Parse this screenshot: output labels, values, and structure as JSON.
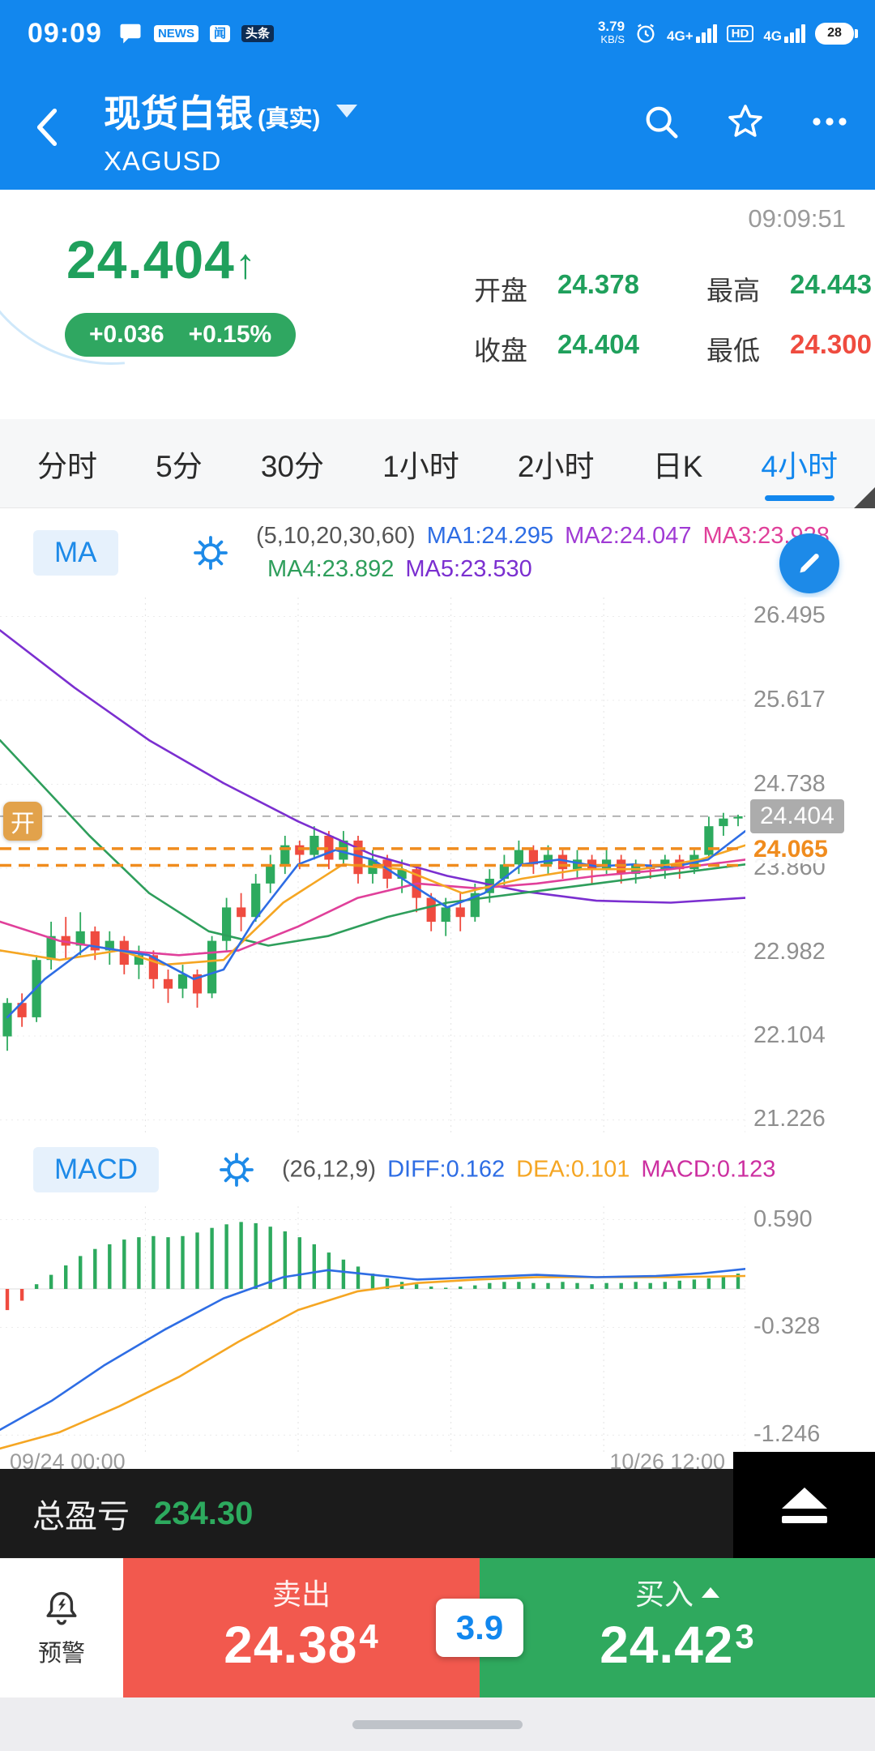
{
  "colors": {
    "accent_blue": "#1287ee",
    "up_green": "#2daa5e",
    "down_red": "#ef4b3f",
    "orange": "#f08c1e",
    "sell_red": "#f2594e",
    "buy_green": "#2fa95e"
  },
  "status_bar": {
    "time": "09:09",
    "badge_news": "NEWS",
    "badge_app1": "闻",
    "badge_app2": "头条",
    "speed_value": "3.79",
    "speed_unit": "KB/S",
    "net1": "4G+",
    "hd": "HD",
    "net2": "4G",
    "battery": "28"
  },
  "header": {
    "title": "现货白银",
    "title_suffix": "(真实)",
    "symbol": "XAGUSD"
  },
  "quote": {
    "timestamp": "09:09:51",
    "price": "24.404",
    "arrow": "↑",
    "change": "+0.036",
    "change_pct": "+0.15%",
    "fields": [
      {
        "label": "开盘",
        "value": "24.378",
        "dir": "up"
      },
      {
        "label": "最高",
        "value": "24.443",
        "dir": "up"
      },
      {
        "label": "收盘",
        "value": "24.404",
        "dir": "up"
      },
      {
        "label": "最低",
        "value": "24.300",
        "dir": "down"
      }
    ]
  },
  "tabs": {
    "items": [
      "分时",
      "5分",
      "30分",
      "1小时",
      "2小时",
      "日K",
      "4小时"
    ],
    "active_index": 6
  },
  "ma_panel": {
    "name": "MA",
    "params": "(5,10,20,30,60)",
    "items": [
      {
        "text": "MA1:24.295",
        "color": "#2e6de4"
      },
      {
        "text": "MA2:24.047",
        "color": "#a03ad4"
      },
      {
        "text": "MA3:23.928",
        "color": "#e0409a"
      },
      {
        "text": "MA4:23.892",
        "color": "#2e9e5b"
      },
      {
        "text": "MA5:23.530",
        "color": "#7b2fd0"
      }
    ],
    "line1_count": 3
  },
  "macd_panel": {
    "name": "MACD",
    "params": "(26,12,9)",
    "items": [
      {
        "text": "DIFF:0.162",
        "color": "#2e6de4"
      },
      {
        "text": "DEA:0.101",
        "color": "#f5a623"
      },
      {
        "text": "MACD:0.123",
        "color": "#cc2fa0"
      }
    ]
  },
  "x_axis": {
    "left": "09/24 00:00",
    "right": "10/26 12:00"
  },
  "pnl": {
    "label": "总盈亏",
    "value": "234.30"
  },
  "trade": {
    "alert": "预警",
    "sell_label": "卖出",
    "sell_main": "24.38",
    "sell_pip": "4",
    "spread": "3.9",
    "buy_label": "买入",
    "buy_main": "24.42",
    "buy_pip": "3"
  },
  "chart_data": [
    {
      "type": "candlestick",
      "title": "XAGUSD 4小时 K线 with MA(5,10,20,30,60)",
      "price_range": [
        21.086,
        26.694
      ],
      "y_ticks": [
        26.495,
        25.617,
        24.738,
        23.86,
        22.982,
        22.104,
        21.226
      ],
      "grid_x": [
        0.195,
        0.4,
        0.605,
        0.81,
        1.0
      ],
      "current_price": 24.404,
      "position_lines": [
        {
          "price": 24.065,
          "show_label": true
        },
        {
          "price": 23.89,
          "show_label": false
        }
      ],
      "open_marker": {
        "label": "开",
        "price": 24.35
      },
      "candles": [
        [
          22.1,
          22.45,
          21.95,
          22.5
        ],
        [
          22.45,
          22.3,
          22.2,
          22.55
        ],
        [
          22.3,
          22.9,
          22.25,
          22.95
        ],
        [
          22.9,
          23.15,
          22.8,
          23.3
        ],
        [
          23.15,
          23.05,
          22.9,
          23.35
        ],
        [
          23.05,
          23.2,
          22.95,
          23.4
        ],
        [
          23.2,
          23.0,
          22.9,
          23.25
        ],
        [
          23.0,
          23.1,
          22.85,
          23.2
        ],
        [
          23.1,
          22.85,
          22.75,
          23.15
        ],
        [
          22.85,
          22.95,
          22.7,
          23.05
        ],
        [
          22.95,
          22.7,
          22.6,
          23.0
        ],
        [
          22.7,
          22.6,
          22.45,
          22.8
        ],
        [
          22.6,
          22.75,
          22.5,
          22.85
        ],
        [
          22.75,
          22.55,
          22.4,
          22.8
        ],
        [
          22.55,
          23.1,
          22.5,
          23.15
        ],
        [
          23.1,
          23.45,
          23.0,
          23.55
        ],
        [
          23.45,
          23.35,
          23.2,
          23.6
        ],
        [
          23.35,
          23.7,
          23.3,
          23.8
        ],
        [
          23.7,
          23.9,
          23.6,
          24.0
        ],
        [
          23.9,
          24.1,
          23.8,
          24.2
        ],
        [
          24.1,
          24.0,
          23.85,
          24.15
        ],
        [
          24.0,
          24.2,
          23.95,
          24.3
        ],
        [
          24.2,
          23.95,
          23.85,
          24.25
        ],
        [
          23.95,
          24.15,
          23.9,
          24.25
        ],
        [
          24.15,
          23.8,
          23.7,
          24.2
        ],
        [
          23.8,
          23.95,
          23.7,
          24.05
        ],
        [
          23.95,
          23.75,
          23.65,
          24.0
        ],
        [
          23.75,
          23.85,
          23.6,
          23.95
        ],
        [
          23.85,
          23.55,
          23.4,
          23.9
        ],
        [
          23.55,
          23.3,
          23.2,
          23.6
        ],
        [
          23.3,
          23.45,
          23.15,
          23.55
        ],
        [
          23.45,
          23.35,
          23.2,
          23.6
        ],
        [
          23.35,
          23.6,
          23.3,
          23.7
        ],
        [
          23.6,
          23.75,
          23.5,
          23.85
        ],
        [
          23.75,
          23.9,
          23.65,
          24.0
        ],
        [
          23.9,
          24.05,
          23.8,
          24.15
        ],
        [
          24.05,
          23.9,
          23.8,
          24.1
        ],
        [
          23.9,
          24.0,
          23.8,
          24.1
        ],
        [
          24.0,
          23.85,
          23.75,
          24.05
        ],
        [
          23.85,
          23.95,
          23.75,
          24.05
        ],
        [
          23.95,
          23.85,
          23.7,
          24.0
        ],
        [
          23.85,
          23.95,
          23.8,
          24.05
        ],
        [
          23.95,
          23.8,
          23.7,
          24.0
        ],
        [
          23.8,
          23.9,
          23.7,
          23.95
        ],
        [
          23.9,
          23.85,
          23.75,
          23.95
        ],
        [
          23.85,
          23.95,
          23.75,
          24.0
        ],
        [
          23.95,
          23.85,
          23.75,
          24.0
        ],
        [
          23.85,
          24.0,
          23.8,
          24.05
        ],
        [
          24.0,
          24.3,
          23.95,
          24.4
        ],
        [
          24.3,
          24.38,
          24.2,
          24.44
        ],
        [
          24.38,
          24.404,
          24.3,
          24.42
        ]
      ],
      "ma_lines": [
        {
          "name": "MA60",
          "color": "#7b2fd0",
          "points": [
            [
              0,
              26.35
            ],
            [
              0.1,
              25.75
            ],
            [
              0.2,
              25.2
            ],
            [
              0.3,
              24.75
            ],
            [
              0.4,
              24.35
            ],
            [
              0.5,
              24.0
            ],
            [
              0.6,
              23.78
            ],
            [
              0.7,
              23.62
            ],
            [
              0.8,
              23.52
            ],
            [
              0.9,
              23.5
            ],
            [
              1.0,
              23.55
            ]
          ]
        },
        {
          "name": "MA30",
          "color": "#2e9e5b",
          "points": [
            [
              0,
              25.2
            ],
            [
              0.06,
              24.7
            ],
            [
              0.12,
              24.2
            ],
            [
              0.2,
              23.6
            ],
            [
              0.28,
              23.2
            ],
            [
              0.36,
              23.05
            ],
            [
              0.44,
              23.15
            ],
            [
              0.52,
              23.35
            ],
            [
              0.6,
              23.5
            ],
            [
              0.7,
              23.6
            ],
            [
              0.8,
              23.7
            ],
            [
              0.9,
              23.8
            ],
            [
              1.0,
              23.9
            ]
          ]
        },
        {
          "name": "MA20",
          "color": "#e0409a",
          "points": [
            [
              0,
              23.3
            ],
            [
              0.08,
              23.1
            ],
            [
              0.16,
              23.0
            ],
            [
              0.24,
              22.95
            ],
            [
              0.32,
              23.0
            ],
            [
              0.4,
              23.25
            ],
            [
              0.48,
              23.55
            ],
            [
              0.56,
              23.7
            ],
            [
              0.64,
              23.65
            ],
            [
              0.72,
              23.7
            ],
            [
              0.8,
              23.78
            ],
            [
              0.9,
              23.85
            ],
            [
              1.0,
              23.95
            ]
          ]
        },
        {
          "name": "MA10",
          "color": "#f5a623",
          "points": [
            [
              0,
              23.0
            ],
            [
              0.08,
              22.9
            ],
            [
              0.16,
              23.0
            ],
            [
              0.22,
              22.85
            ],
            [
              0.3,
              22.9
            ],
            [
              0.38,
              23.5
            ],
            [
              0.46,
              23.9
            ],
            [
              0.54,
              23.85
            ],
            [
              0.62,
              23.6
            ],
            [
              0.7,
              23.75
            ],
            [
              0.78,
              23.85
            ],
            [
              0.86,
              23.85
            ],
            [
              0.94,
              23.95
            ],
            [
              1.0,
              24.1
            ]
          ]
        },
        {
          "name": "MA5",
          "color": "#2e6de4",
          "points": [
            [
              0.01,
              22.3
            ],
            [
              0.06,
              22.7
            ],
            [
              0.12,
              23.05
            ],
            [
              0.2,
              22.95
            ],
            [
              0.26,
              22.7
            ],
            [
              0.3,
              22.8
            ],
            [
              0.34,
              23.3
            ],
            [
              0.4,
              23.9
            ],
            [
              0.45,
              24.05
            ],
            [
              0.5,
              23.95
            ],
            [
              0.55,
              23.7
            ],
            [
              0.6,
              23.45
            ],
            [
              0.65,
              23.6
            ],
            [
              0.7,
              23.9
            ],
            [
              0.75,
              23.95
            ],
            [
              0.8,
              23.88
            ],
            [
              0.85,
              23.9
            ],
            [
              0.9,
              23.87
            ],
            [
              0.95,
              23.95
            ],
            [
              1.0,
              24.25
            ]
          ]
        }
      ]
    },
    {
      "type": "macd",
      "value_range": [
        -1.388,
        0.704
      ],
      "y_ticks": [
        0.59,
        -0.328,
        -1.246
      ],
      "grid_x": [
        0.195,
        0.4,
        0.605,
        0.81,
        1.0
      ],
      "histogram": [
        -0.18,
        -0.1,
        0.04,
        0.12,
        0.2,
        0.28,
        0.34,
        0.38,
        0.42,
        0.44,
        0.45,
        0.44,
        0.45,
        0.48,
        0.52,
        0.55,
        0.57,
        0.56,
        0.53,
        0.49,
        0.44,
        0.38,
        0.31,
        0.25,
        0.19,
        0.13,
        0.09,
        0.06,
        0.04,
        0.02,
        0.01,
        0.02,
        0.03,
        0.05,
        0.06,
        0.06,
        0.05,
        0.05,
        0.06,
        0.05,
        0.04,
        0.05,
        0.05,
        0.06,
        0.05,
        0.06,
        0.07,
        0.08,
        0.09,
        0.11,
        0.13
      ],
      "diff_line": {
        "name": "DIFF",
        "color": "#2e6de4",
        "points": [
          [
            0,
            -1.2
          ],
          [
            0.07,
            -0.95
          ],
          [
            0.14,
            -0.65
          ],
          [
            0.22,
            -0.35
          ],
          [
            0.3,
            -0.08
          ],
          [
            0.38,
            0.1
          ],
          [
            0.44,
            0.16
          ],
          [
            0.5,
            0.12
          ],
          [
            0.56,
            0.08
          ],
          [
            0.64,
            0.1
          ],
          [
            0.72,
            0.12
          ],
          [
            0.8,
            0.1
          ],
          [
            0.88,
            0.11
          ],
          [
            0.94,
            0.13
          ],
          [
            1.0,
            0.17
          ]
        ]
      },
      "dea_line": {
        "name": "DEA",
        "color": "#f5a623",
        "points": [
          [
            0,
            -1.36
          ],
          [
            0.08,
            -1.22
          ],
          [
            0.16,
            -1.0
          ],
          [
            0.24,
            -0.75
          ],
          [
            0.32,
            -0.45
          ],
          [
            0.4,
            -0.18
          ],
          [
            0.48,
            -0.02
          ],
          [
            0.56,
            0.05
          ],
          [
            0.64,
            0.08
          ],
          [
            0.72,
            0.1
          ],
          [
            0.8,
            0.1
          ],
          [
            0.9,
            0.1
          ],
          [
            1.0,
            0.11
          ]
        ]
      }
    }
  ]
}
